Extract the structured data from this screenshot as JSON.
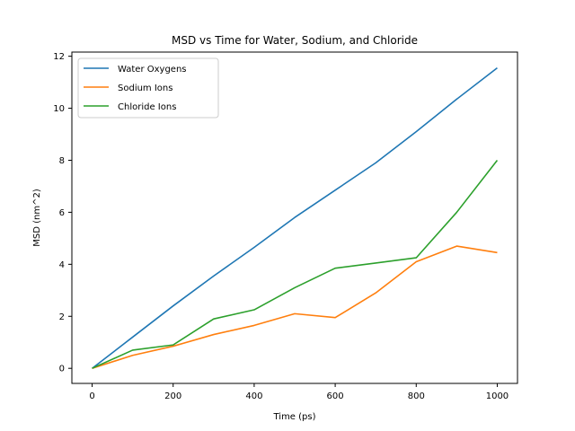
{
  "chart_data": {
    "type": "line",
    "title": "MSD vs Time for Water, Sodium, and Chloride",
    "xlabel": "Time (ps)",
    "ylabel": "MSD (nm^2)",
    "x": [
      0,
      100,
      200,
      300,
      400,
      500,
      600,
      700,
      800,
      900,
      1000
    ],
    "xlim": [
      -50,
      1050
    ],
    "ylim": [
      -0.58,
      12.16
    ],
    "xticks": [
      0,
      200,
      400,
      600,
      800,
      1000
    ],
    "yticks": [
      0,
      2,
      4,
      6,
      8,
      10,
      12
    ],
    "grid": false,
    "legend_position": "top-left",
    "series": [
      {
        "name": "Water Oxygens",
        "color": "#1f77b4",
        "values": [
          0,
          1.2,
          2.4,
          3.55,
          4.65,
          5.8,
          6.85,
          7.9,
          9.1,
          10.35,
          11.55
        ]
      },
      {
        "name": "Sodium Ions",
        "color": "#ff7f0e",
        "values": [
          0,
          0.5,
          0.85,
          1.3,
          1.65,
          2.1,
          1.95,
          2.9,
          4.1,
          4.7,
          4.45
        ]
      },
      {
        "name": "Chloride Ions",
        "color": "#2ca02c",
        "values": [
          0,
          0.7,
          0.9,
          1.9,
          2.25,
          3.1,
          3.85,
          4.05,
          4.25,
          6.0,
          8.0
        ]
      }
    ]
  }
}
